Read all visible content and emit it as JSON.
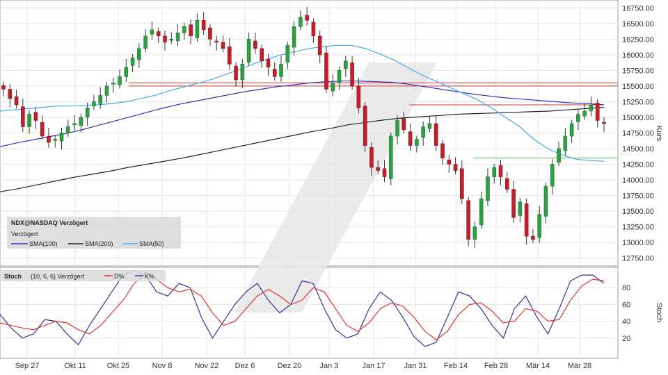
{
  "price_panel": {
    "symbol_title": "NDX@NASDAQ Verzögert",
    "delay_note": "Verzögert",
    "y_axis_label": "Kurs",
    "legend": [
      {
        "name": "SMA(100)",
        "color": "#3333bb"
      },
      {
        "name": "SMA(200)",
        "color": "#222222"
      },
      {
        "name": "SMA(50)",
        "color": "#44aaee"
      }
    ]
  },
  "stoch_panel": {
    "title": "Stoch",
    "params": "(10, 6, 6) Verzögert",
    "legend": [
      {
        "name": "D%",
        "color": "#e03030"
      },
      {
        "name": "K%",
        "color": "#333399"
      }
    ],
    "y_axis_label": "Stoch"
  },
  "x_axis": {
    "labels": [
      "Sep 27",
      "Okt 11",
      "Okt 25",
      "Nov 8",
      "Nov 22",
      "Dez 6",
      "Dez 20",
      "Jan 3",
      "Jan 17",
      "Jan 31",
      "Feb 14",
      "Feb 28",
      "Mär 14",
      "Mär 28"
    ]
  },
  "chart_data": [
    {
      "type": "candlestick",
      "title": "NDX@NASDAQ Verzögert",
      "ylabel": "Kurs",
      "ylim": [
        12625,
        16875
      ],
      "y_ticks": [
        "16750.00",
        "16500.00",
        "16250.00",
        "16000.00",
        "15750.00",
        "15500.00",
        "15250.00",
        "15000.00",
        "14750.00",
        "14500.00",
        "14250.00",
        "14000.00",
        "13750.00",
        "13500.00",
        "13250.00",
        "13000.00",
        "12750.00"
      ],
      "x_categories": [
        "Sep 27",
        "Okt 11",
        "Okt 25",
        "Nov 8",
        "Nov 22",
        "Dez 6",
        "Dez 20",
        "Jan 3",
        "Jan 17",
        "Jan 31",
        "Feb 14",
        "Feb 28",
        "Mär 14",
        "Mär 28"
      ],
      "close_series": [
        15450,
        15300,
        15200,
        14850,
        15050,
        14950,
        14700,
        14600,
        14650,
        14750,
        14850,
        14900,
        15000,
        15150,
        15250,
        15350,
        15500,
        15550,
        15650,
        15800,
        15950,
        16100,
        16300,
        16400,
        16300,
        16200,
        16250,
        16350,
        16450,
        16300,
        16550,
        16400,
        16250,
        16200,
        16100,
        15850,
        15600,
        15850,
        16250,
        16100,
        15900,
        15800,
        15650,
        15850,
        16150,
        16450,
        16600,
        16550,
        16300,
        16000,
        15450,
        15550,
        15750,
        15900,
        15500,
        15150,
        14550,
        14200,
        14150,
        14050,
        14700,
        14950,
        14800,
        14550,
        14650,
        14850,
        14900,
        14550,
        14350,
        14250,
        14150,
        13700,
        13050,
        13250,
        13700,
        14050,
        14200,
        14050,
        13850,
        13400,
        13650,
        13100,
        13050,
        13450,
        13900,
        14250,
        14500,
        14700,
        14900,
        15050,
        15100,
        15200,
        14950,
        14900
      ],
      "sma50": [
        15100,
        15120,
        15140,
        15160,
        15180,
        15180,
        15190,
        15200,
        15220,
        15250,
        15300,
        15350,
        15420,
        15480,
        15540,
        15600,
        15680,
        15760,
        15850,
        15930,
        16000,
        16050,
        16100,
        16130,
        16150,
        16150,
        16100,
        16020,
        15920,
        15800,
        15680,
        15580,
        15480,
        15380,
        15280,
        15150,
        15000,
        14850,
        14650,
        14500,
        14400,
        14330,
        14310,
        14300
      ],
      "sma100": [
        14530,
        14590,
        14640,
        14690,
        14740,
        14800,
        14870,
        14940,
        15010,
        15080,
        15150,
        15210,
        15260,
        15310,
        15360,
        15410,
        15450,
        15490,
        15520,
        15550,
        15570,
        15580,
        15580,
        15570,
        15560,
        15530,
        15490,
        15450,
        15410,
        15370,
        15340,
        15310,
        15290,
        15270,
        15250,
        15230,
        15220,
        15200
      ],
      "sma200": [
        13810,
        13860,
        13920,
        13980,
        14040,
        14090,
        14140,
        14200,
        14250,
        14300,
        14350,
        14410,
        14470,
        14530,
        14590,
        14650,
        14710,
        14770,
        14820,
        14880,
        14920,
        14960,
        14990,
        15010,
        15030,
        15050,
        15060,
        15070,
        15080,
        15090,
        15100,
        15120,
        15140,
        15160
      ],
      "horizontal_lines": [
        {
          "value": 15550,
          "color": "#d03030"
        },
        {
          "value": 15500,
          "color": "#d03030"
        },
        {
          "value": 15200,
          "color": "#d03030"
        },
        {
          "value": 14350,
          "color": "#55bb55"
        }
      ]
    },
    {
      "type": "line",
      "title": "Stoch",
      "ylabel": "Stoch",
      "ylim": [
        0,
        100
      ],
      "y_ticks": [
        "80",
        "60",
        "40",
        "20"
      ],
      "series": [
        {
          "name": "K%",
          "values": [
            48,
            32,
            20,
            25,
            42,
            40,
            25,
            12,
            35,
            55,
            75,
            95,
            100,
            95,
            75,
            70,
            85,
            80,
            45,
            20,
            40,
            60,
            75,
            85,
            65,
            50,
            60,
            88,
            85,
            55,
            30,
            20,
            25,
            55,
            75,
            65,
            45,
            22,
            10,
            15,
            45,
            75,
            70,
            55,
            35,
            20,
            55,
            70,
            45,
            25,
            55,
            88,
            95,
            95,
            85
          ]
        },
        {
          "name": "D%",
          "values": [
            38,
            35,
            32,
            30,
            35,
            40,
            38,
            30,
            25,
            35,
            50,
            65,
            85,
            98,
            90,
            80,
            75,
            78,
            70,
            50,
            35,
            40,
            55,
            70,
            78,
            70,
            60,
            65,
            80,
            75,
            55,
            35,
            28,
            38,
            55,
            62,
            58,
            45,
            28,
            18,
            28,
            48,
            60,
            62,
            52,
            38,
            40,
            55,
            52,
            40,
            42,
            65,
            82,
            90,
            88
          ]
        }
      ]
    }
  ]
}
